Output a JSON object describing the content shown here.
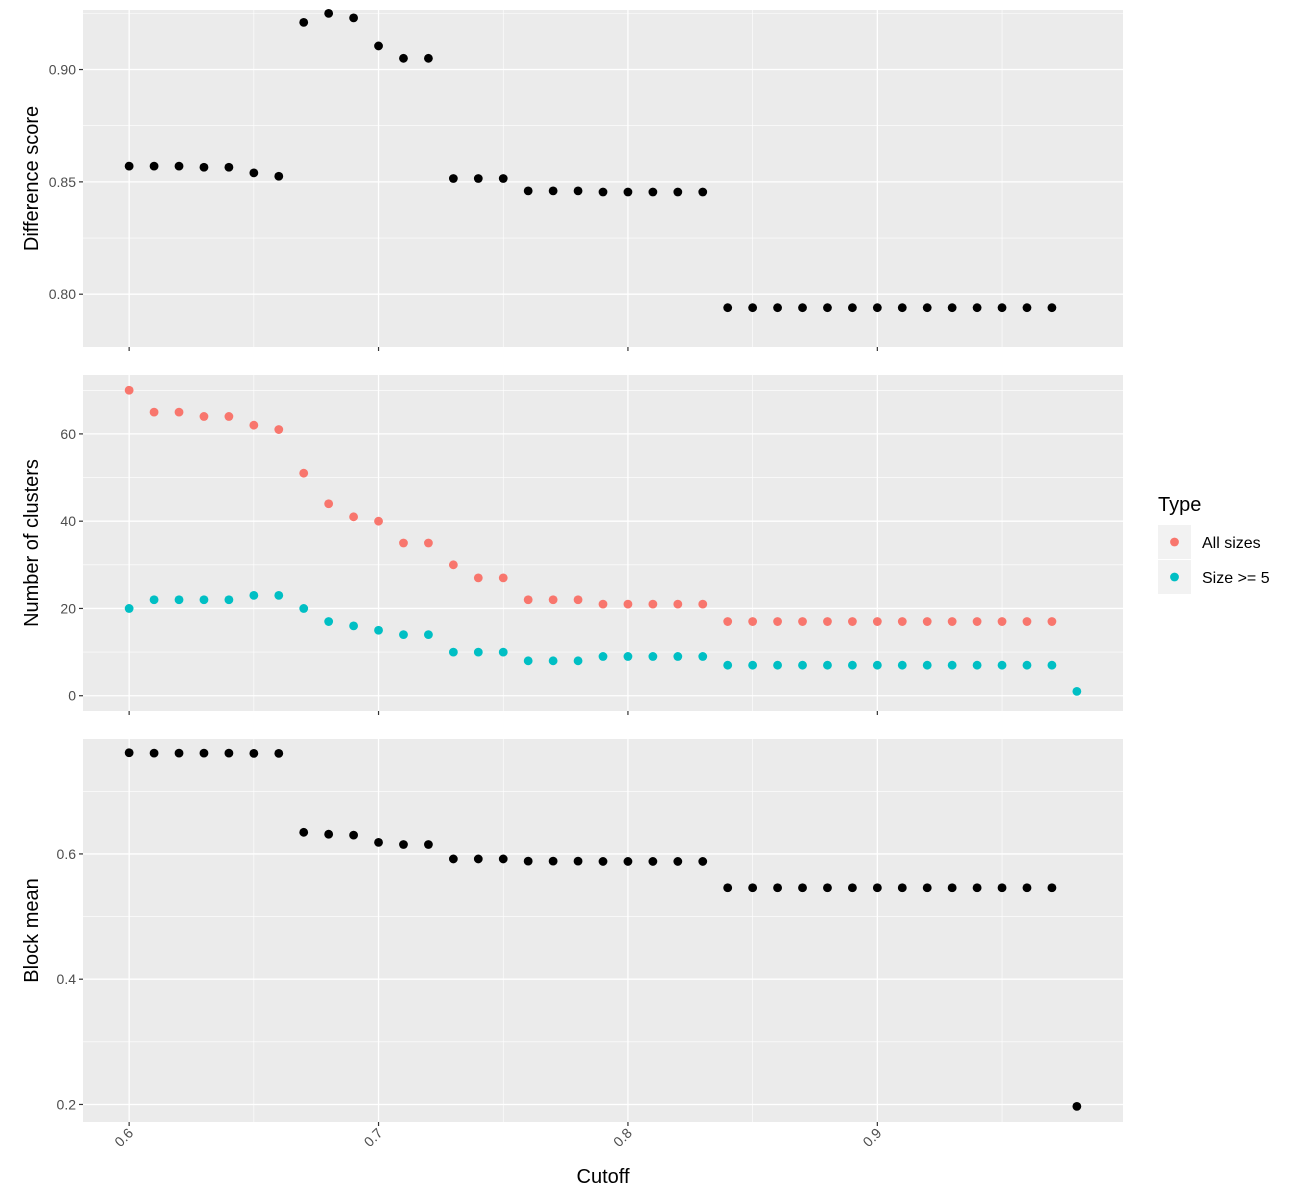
{
  "chart_data": {
    "type": "scatter",
    "xlabel": "Cutoff",
    "x_ticks": [
      0.6,
      0.7,
      0.8,
      0.9
    ],
    "x_tick_labels": [
      "0.6",
      "0.7",
      "0.8",
      "0.9"
    ],
    "xlim": [
      0.5815,
      0.9985
    ],
    "legend": {
      "title": "Type",
      "placement": "right",
      "entries": [
        {
          "label": "All sizes",
          "color": "#F8766D"
        },
        {
          "label": "Size >= 5",
          "color": "#00BFC4"
        }
      ]
    },
    "panels": [
      {
        "ylabel": "Difference score",
        "ylim": [
          0.7765,
          0.9265
        ],
        "y_ticks": [
          0.8,
          0.85,
          0.9
        ],
        "y_tick_labels": [
          "0.80",
          "0.85",
          "0.90"
        ],
        "series": [
          {
            "color": "#000000",
            "points": [
              [
                0.6,
                0.857
              ],
              [
                0.61,
                0.857
              ],
              [
                0.62,
                0.857
              ],
              [
                0.63,
                0.8565
              ],
              [
                0.64,
                0.8565
              ],
              [
                0.65,
                0.854
              ],
              [
                0.66,
                0.8525
              ],
              [
                0.67,
                0.921
              ],
              [
                0.68,
                0.925
              ],
              [
                0.69,
                0.923
              ],
              [
                0.7,
                0.9105
              ],
              [
                0.71,
                0.905
              ],
              [
                0.72,
                0.905
              ],
              [
                0.73,
                0.8515
              ],
              [
                0.74,
                0.8515
              ],
              [
                0.75,
                0.8515
              ],
              [
                0.76,
                0.846
              ],
              [
                0.77,
                0.846
              ],
              [
                0.78,
                0.846
              ],
              [
                0.79,
                0.8455
              ],
              [
                0.8,
                0.8455
              ],
              [
                0.81,
                0.8455
              ],
              [
                0.82,
                0.8455
              ],
              [
                0.83,
                0.8455
              ],
              [
                0.84,
                0.794
              ],
              [
                0.85,
                0.794
              ],
              [
                0.86,
                0.794
              ],
              [
                0.87,
                0.794
              ],
              [
                0.88,
                0.794
              ],
              [
                0.89,
                0.794
              ],
              [
                0.9,
                0.794
              ],
              [
                0.91,
                0.794
              ],
              [
                0.92,
                0.794
              ],
              [
                0.93,
                0.794
              ],
              [
                0.94,
                0.794
              ],
              [
                0.95,
                0.794
              ],
              [
                0.96,
                0.794
              ],
              [
                0.97,
                0.794
              ]
            ]
          }
        ]
      },
      {
        "ylabel": "Number of clusters",
        "ylim": [
          -3.5,
          73.5
        ],
        "y_ticks": [
          0,
          20,
          40,
          60
        ],
        "y_tick_labels": [
          "0",
          "20",
          "40",
          "60"
        ],
        "series": [
          {
            "name": "All sizes",
            "color": "#F8766D",
            "points": [
              [
                0.6,
                70
              ],
              [
                0.61,
                65
              ],
              [
                0.62,
                65
              ],
              [
                0.63,
                64
              ],
              [
                0.64,
                64
              ],
              [
                0.65,
                62
              ],
              [
                0.66,
                61
              ],
              [
                0.67,
                51
              ],
              [
                0.68,
                44
              ],
              [
                0.69,
                41
              ],
              [
                0.7,
                40
              ],
              [
                0.71,
                35
              ],
              [
                0.72,
                35
              ],
              [
                0.73,
                30
              ],
              [
                0.74,
                27
              ],
              [
                0.75,
                27
              ],
              [
                0.76,
                22
              ],
              [
                0.77,
                22
              ],
              [
                0.78,
                22
              ],
              [
                0.79,
                21
              ],
              [
                0.8,
                21
              ],
              [
                0.81,
                21
              ],
              [
                0.82,
                21
              ],
              [
                0.83,
                21
              ],
              [
                0.84,
                17
              ],
              [
                0.85,
                17
              ],
              [
                0.86,
                17
              ],
              [
                0.87,
                17
              ],
              [
                0.88,
                17
              ],
              [
                0.89,
                17
              ],
              [
                0.9,
                17
              ],
              [
                0.91,
                17
              ],
              [
                0.92,
                17
              ],
              [
                0.93,
                17
              ],
              [
                0.94,
                17
              ],
              [
                0.95,
                17
              ],
              [
                0.96,
                17
              ],
              [
                0.97,
                17
              ]
            ]
          },
          {
            "name": "Size >= 5",
            "color": "#00BFC4",
            "points": [
              [
                0.6,
                20
              ],
              [
                0.61,
                22
              ],
              [
                0.62,
                22
              ],
              [
                0.63,
                22
              ],
              [
                0.64,
                22
              ],
              [
                0.65,
                23
              ],
              [
                0.66,
                23
              ],
              [
                0.67,
                20
              ],
              [
                0.68,
                17
              ],
              [
                0.69,
                16
              ],
              [
                0.7,
                15
              ],
              [
                0.71,
                14
              ],
              [
                0.72,
                14
              ],
              [
                0.73,
                10
              ],
              [
                0.74,
                10
              ],
              [
                0.75,
                10
              ],
              [
                0.76,
                8
              ],
              [
                0.77,
                8
              ],
              [
                0.78,
                8
              ],
              [
                0.79,
                9
              ],
              [
                0.8,
                9
              ],
              [
                0.81,
                9
              ],
              [
                0.82,
                9
              ],
              [
                0.83,
                9
              ],
              [
                0.84,
                7
              ],
              [
                0.85,
                7
              ],
              [
                0.86,
                7
              ],
              [
                0.87,
                7
              ],
              [
                0.88,
                7
              ],
              [
                0.89,
                7
              ],
              [
                0.9,
                7
              ],
              [
                0.91,
                7
              ],
              [
                0.92,
                7
              ],
              [
                0.93,
                7
              ],
              [
                0.94,
                7
              ],
              [
                0.95,
                7
              ],
              [
                0.96,
                7
              ],
              [
                0.97,
                7
              ],
              [
                0.98,
                1
              ]
            ]
          }
        ]
      },
      {
        "ylabel": "Block mean",
        "ylim": [
          0.172,
          0.7835
        ],
        "y_ticks": [
          0.2,
          0.4,
          0.6
        ],
        "y_tick_labels": [
          "0.2",
          "0.4",
          "0.6"
        ],
        "series": [
          {
            "color": "#000000",
            "points": [
              [
                0.6,
                0.7615
              ],
              [
                0.61,
                0.761
              ],
              [
                0.62,
                0.761
              ],
              [
                0.63,
                0.761
              ],
              [
                0.64,
                0.761
              ],
              [
                0.65,
                0.7605
              ],
              [
                0.66,
                0.7605
              ],
              [
                0.67,
                0.6345
              ],
              [
                0.68,
                0.6315
              ],
              [
                0.69,
                0.63
              ],
              [
                0.7,
                0.6185
              ],
              [
                0.71,
                0.615
              ],
              [
                0.72,
                0.615
              ],
              [
                0.73,
                0.592
              ],
              [
                0.74,
                0.592
              ],
              [
                0.75,
                0.592
              ],
              [
                0.76,
                0.5885
              ],
              [
                0.77,
                0.5885
              ],
              [
                0.78,
                0.5885
              ],
              [
                0.79,
                0.588
              ],
              [
                0.8,
                0.588
              ],
              [
                0.81,
                0.588
              ],
              [
                0.82,
                0.588
              ],
              [
                0.83,
                0.588
              ],
              [
                0.84,
                0.546
              ],
              [
                0.85,
                0.546
              ],
              [
                0.86,
                0.546
              ],
              [
                0.87,
                0.546
              ],
              [
                0.88,
                0.546
              ],
              [
                0.89,
                0.546
              ],
              [
                0.9,
                0.546
              ],
              [
                0.91,
                0.546
              ],
              [
                0.92,
                0.546
              ],
              [
                0.93,
                0.546
              ],
              [
                0.94,
                0.546
              ],
              [
                0.95,
                0.546
              ],
              [
                0.96,
                0.546
              ],
              [
                0.97,
                0.546
              ],
              [
                0.98,
                0.197
              ]
            ]
          }
        ]
      }
    ]
  }
}
